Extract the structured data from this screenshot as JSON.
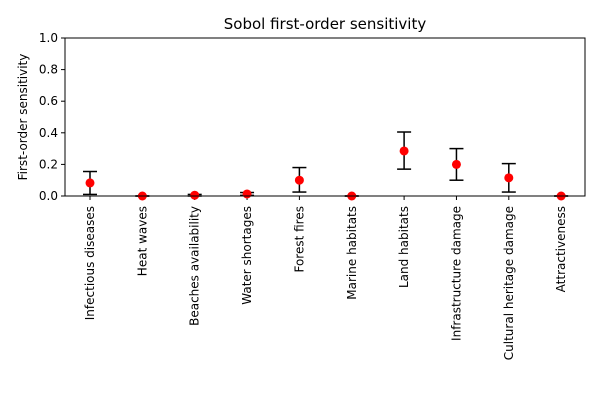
{
  "chart_data": {
    "type": "scatter",
    "title": "Sobol first-order sensitivity",
    "xlabel": "",
    "ylabel": "First-order sensitivity",
    "ylim": [
      0,
      1
    ],
    "yticks": [
      "0.0",
      "0.2",
      "0.4",
      "0.6",
      "0.8",
      "1.0"
    ],
    "grid": false,
    "categories": [
      "Infectious diseases",
      "Heat waves",
      "Beaches availability",
      "Water shortages",
      "Forest fires",
      "Marine habitats",
      "Land habitats",
      "Infrastructure damage",
      "Cultural heritage damage",
      "Attractiveness"
    ],
    "series": [
      {
        "values": [
          0.083,
          0.0,
          0.005,
          0.013,
          0.1,
          0.0,
          0.285,
          0.2,
          0.115,
          0.0
        ],
        "lower": [
          0.01,
          0.0,
          0.0,
          0.004,
          0.025,
          0.0,
          0.17,
          0.1,
          0.025,
          0.0
        ],
        "upper": [
          0.155,
          0.0,
          0.01,
          0.022,
          0.18,
          0.0,
          0.405,
          0.3,
          0.205,
          0.0
        ],
        "color": "#ff0000",
        "errorbar_color": "#000000"
      }
    ]
  }
}
